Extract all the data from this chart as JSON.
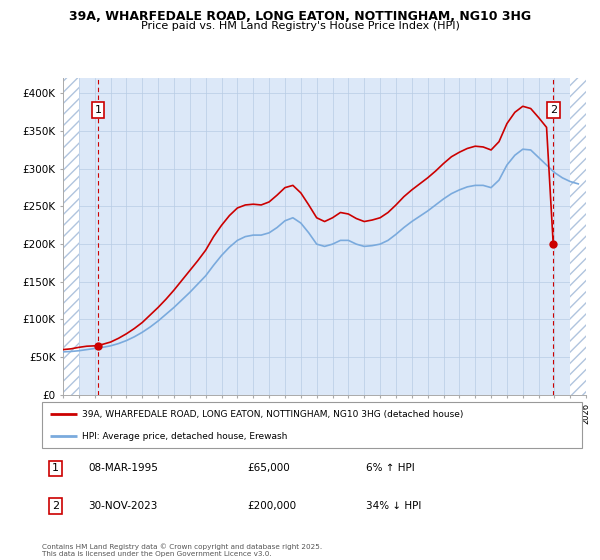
{
  "title_line1": "39A, WHARFEDALE ROAD, LONG EATON, NOTTINGHAM, NG10 3HG",
  "title_line2": "Price paid vs. HM Land Registry's House Price Index (HPI)",
  "background_color": "#ffffff",
  "plot_bg": "#dce8f8",
  "hatch_color": "#b0c4de",
  "grid_color": "#b8cce4",
  "legend_label_red": "39A, WHARFEDALE ROAD, LONG EATON, NOTTINGHAM, NG10 3HG (detached house)",
  "legend_label_blue": "HPI: Average price, detached house, Erewash",
  "annotation1_date": "08-MAR-1995",
  "annotation1_price": "£65,000",
  "annotation1_hpi": "6% ↑ HPI",
  "annotation2_date": "30-NOV-2023",
  "annotation2_price": "£200,000",
  "annotation2_hpi": "34% ↓ HPI",
  "footer": "Contains HM Land Registry data © Crown copyright and database right 2025.\nThis data is licensed under the Open Government Licence v3.0.",
  "xmin": 1993,
  "xmax": 2026,
  "ymin": 0,
  "ymax": 420000,
  "yticks": [
    0,
    50000,
    100000,
    150000,
    200000,
    250000,
    300000,
    350000,
    400000
  ],
  "ytick_labels": [
    "£0",
    "£50K",
    "£100K",
    "£150K",
    "£200K",
    "£250K",
    "£300K",
    "£350K",
    "£400K"
  ],
  "sale1_x": 1995.2,
  "sale1_y": 65000,
  "sale2_x": 2023.92,
  "sale2_y": 200000,
  "red_color": "#cc0000",
  "blue_color": "#7aaadd",
  "hpi_x": [
    1993.0,
    1993.5,
    1994.0,
    1994.5,
    1995.0,
    1995.5,
    1996.0,
    1996.5,
    1997.0,
    1997.5,
    1998.0,
    1998.5,
    1999.0,
    1999.5,
    2000.0,
    2000.5,
    2001.0,
    2001.5,
    2002.0,
    2002.5,
    2003.0,
    2003.5,
    2004.0,
    2004.5,
    2005.0,
    2005.5,
    2006.0,
    2006.5,
    2007.0,
    2007.5,
    2008.0,
    2008.5,
    2009.0,
    2009.5,
    2010.0,
    2010.5,
    2011.0,
    2011.5,
    2012.0,
    2012.5,
    2013.0,
    2013.5,
    2014.0,
    2014.5,
    2015.0,
    2015.5,
    2016.0,
    2016.5,
    2017.0,
    2017.5,
    2018.0,
    2018.5,
    2019.0,
    2019.5,
    2020.0,
    2020.5,
    2021.0,
    2021.5,
    2022.0,
    2022.5,
    2023.0,
    2023.5,
    2024.0,
    2024.5,
    2025.0,
    2025.5
  ],
  "hpi_y": [
    57000,
    57500,
    58500,
    60000,
    61500,
    63000,
    65000,
    68000,
    72000,
    77000,
    83000,
    90000,
    98000,
    107000,
    116000,
    126000,
    136000,
    147000,
    158000,
    172000,
    185000,
    196000,
    205000,
    210000,
    212000,
    212000,
    215000,
    222000,
    231000,
    235000,
    228000,
    215000,
    200000,
    197000,
    200000,
    205000,
    205000,
    200000,
    197000,
    198000,
    200000,
    205000,
    213000,
    222000,
    230000,
    237000,
    244000,
    252000,
    260000,
    267000,
    272000,
    276000,
    278000,
    278000,
    275000,
    285000,
    305000,
    318000,
    326000,
    325000,
    315000,
    305000,
    295000,
    288000,
    283000,
    280000
  ],
  "red_x": [
    1993.0,
    1993.5,
    1994.0,
    1994.5,
    1995.0,
    1995.5,
    1996.0,
    1996.5,
    1997.0,
    1997.5,
    1998.0,
    1998.5,
    1999.0,
    1999.5,
    2000.0,
    2000.5,
    2001.0,
    2001.5,
    2002.0,
    2002.5,
    2003.0,
    2003.5,
    2004.0,
    2004.5,
    2005.0,
    2005.5,
    2006.0,
    2006.5,
    2007.0,
    2007.5,
    2008.0,
    2008.5,
    2009.0,
    2009.5,
    2010.0,
    2010.5,
    2011.0,
    2011.5,
    2012.0,
    2012.5,
    2013.0,
    2013.5,
    2014.0,
    2014.5,
    2015.0,
    2015.5,
    2016.0,
    2016.5,
    2017.0,
    2017.5,
    2018.0,
    2018.5,
    2019.0,
    2019.5,
    2020.0,
    2020.5,
    2021.0,
    2021.5,
    2022.0,
    2022.5,
    2023.0,
    2023.5,
    2023.92
  ],
  "red_y": [
    60000,
    61000,
    63000,
    64500,
    65000,
    67000,
    70000,
    75000,
    81000,
    88000,
    96000,
    106000,
    116000,
    127000,
    139000,
    152000,
    165000,
    178000,
    192000,
    210000,
    225000,
    238000,
    248000,
    252000,
    253000,
    252000,
    256000,
    265000,
    275000,
    278000,
    268000,
    252000,
    235000,
    230000,
    235000,
    242000,
    240000,
    234000,
    230000,
    232000,
    235000,
    242000,
    252000,
    263000,
    272000,
    280000,
    288000,
    297000,
    307000,
    316000,
    322000,
    327000,
    330000,
    329000,
    325000,
    336000,
    360000,
    375000,
    383000,
    380000,
    368000,
    355000,
    200000
  ]
}
